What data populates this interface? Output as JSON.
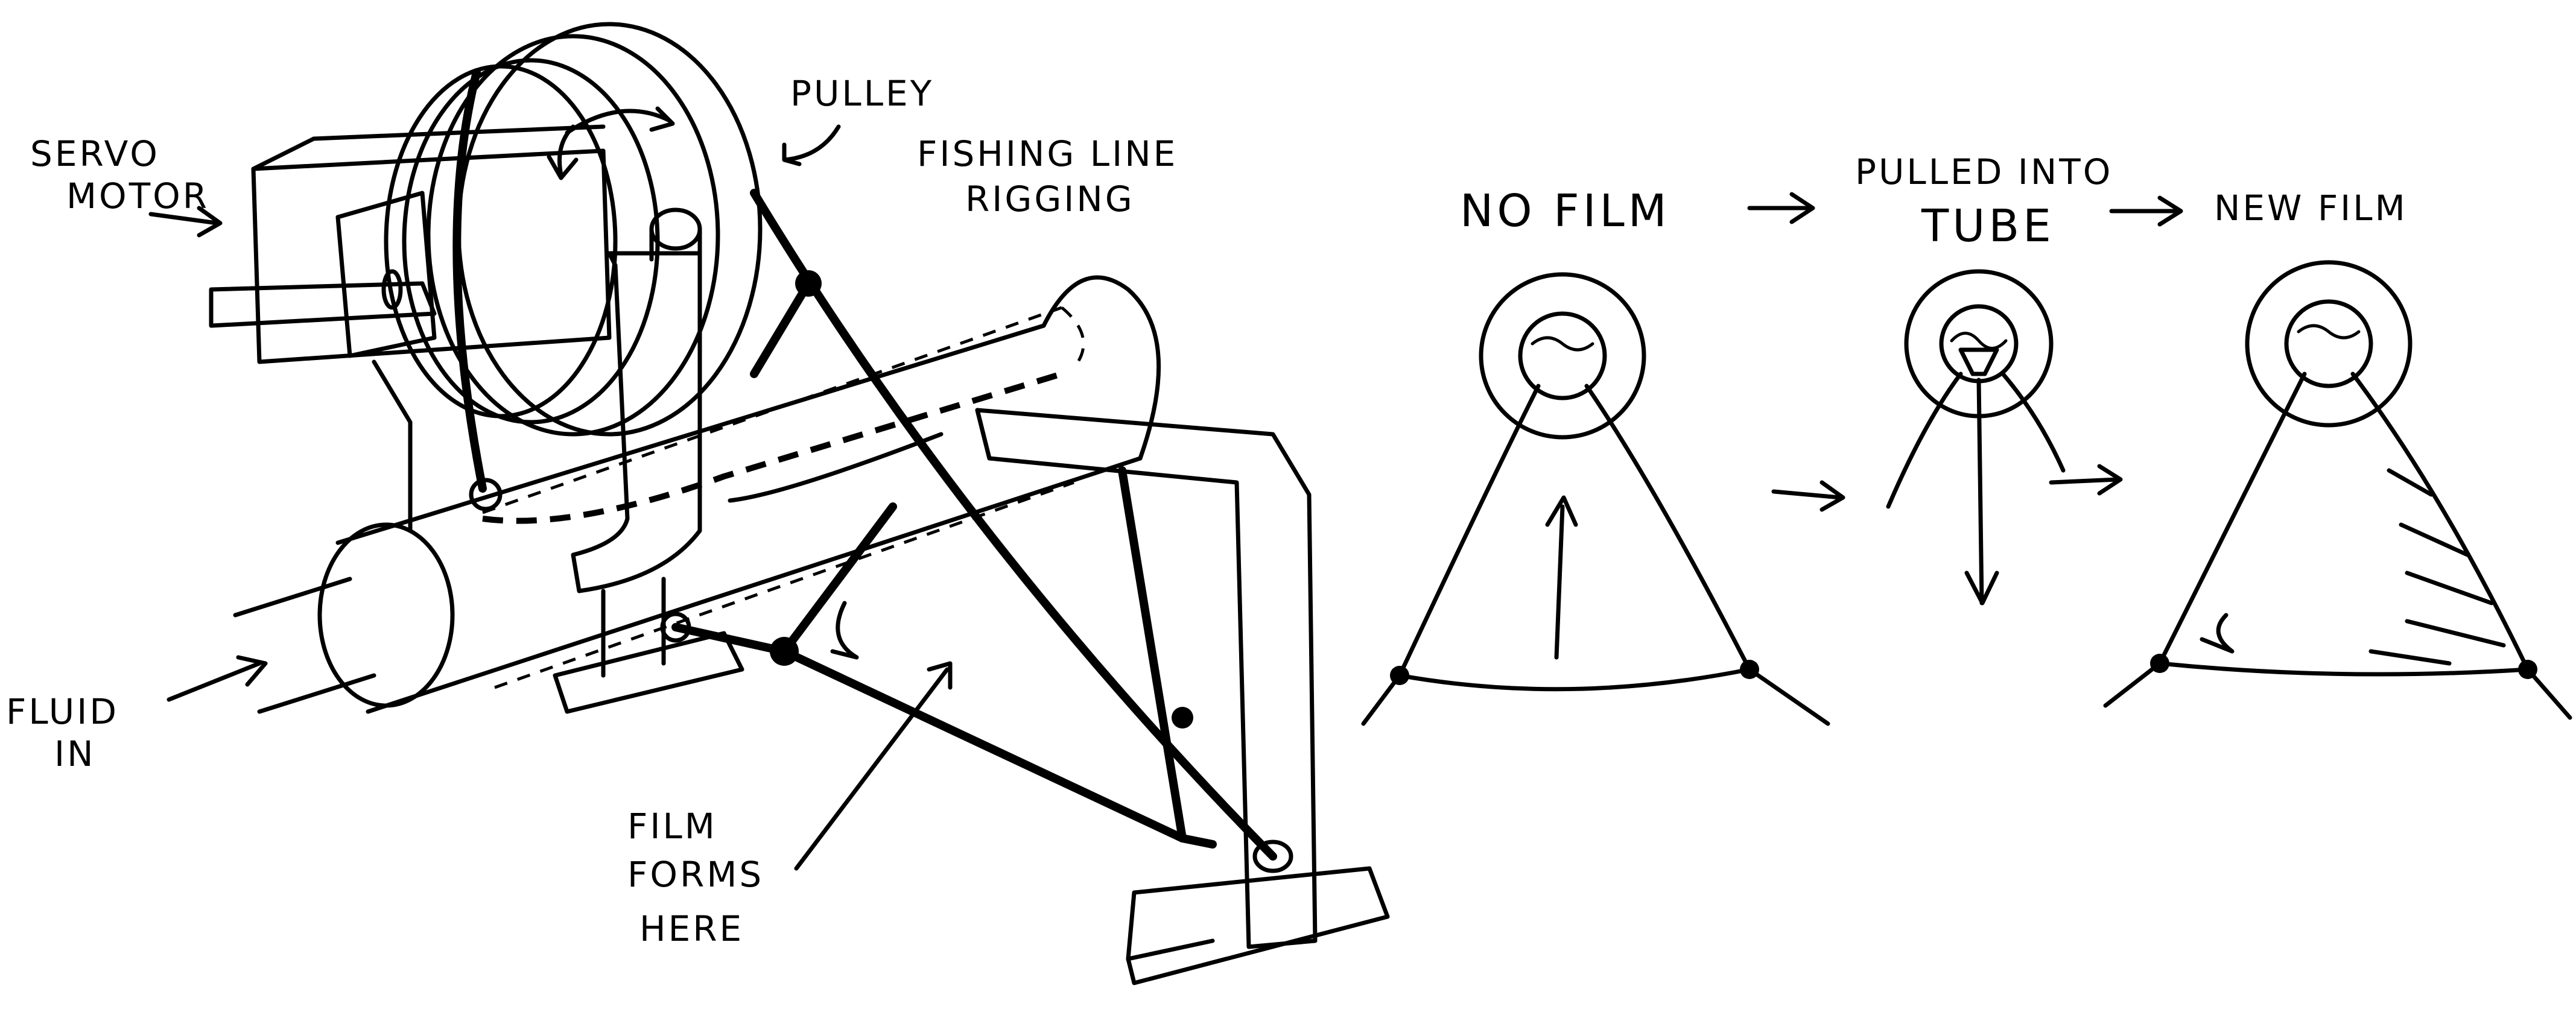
{
  "labels": {
    "servo_motor_line1": "SERVO",
    "servo_motor_line2": "MOTOR",
    "pulley": "PULLEY",
    "fishing_line_line1": "FISHING LINE",
    "fishing_line_line2": "RIGGING",
    "fluid_in_line1": "FLUID",
    "fluid_in_line2": "IN",
    "film_forms_line1": "FILM",
    "film_forms_line2": "FORMS",
    "film_forms_line3": "HERE"
  },
  "sequence": {
    "step1": "NO FILM",
    "step2_line1": "PULLED INTO",
    "step2_line2": "TUBE",
    "step3": "NEW FILM"
  },
  "colors": {
    "ink": "#000000",
    "background": "#ffffff"
  }
}
